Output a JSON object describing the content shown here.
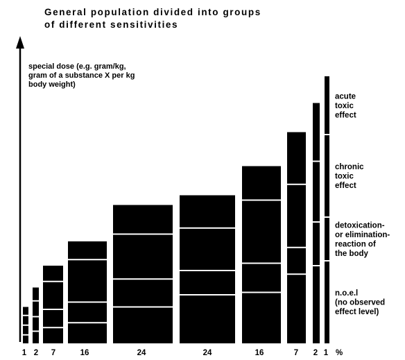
{
  "chart_data": {
    "type": "bar",
    "title": [
      "General population divided into groups",
      "of different sensitivities"
    ],
    "ylabel": [
      "special dose (e.g. gram/kg,",
      "gram of a substance X per kg",
      "body weight)"
    ],
    "unit_label": "%",
    "categories": [
      "1",
      "2",
      "7",
      "16",
      "24",
      "24",
      "16",
      "7",
      "2",
      "1"
    ],
    "population_percent": [
      1,
      2,
      7,
      16,
      24,
      24,
      16,
      7,
      2,
      1
    ],
    "ylim": [
      0,
      100
    ],
    "bars": [
      {
        "label": "1",
        "total": 15,
        "boundaries": [
          3.5,
          7.5,
          11.5
        ]
      },
      {
        "label": "2",
        "total": 23,
        "boundaries": [
          5,
          11,
          17.5
        ]
      },
      {
        "label": "7",
        "total": 32,
        "boundaries": [
          6.5,
          14,
          25.5
        ]
      },
      {
        "label": "16",
        "total": 42,
        "boundaries": [
          8.5,
          17,
          34.5
        ]
      },
      {
        "label": "24",
        "total": 57,
        "boundaries": [
          15,
          26.5,
          45
        ]
      },
      {
        "label": "24",
        "total": 61,
        "boundaries": [
          20,
          30,
          47.5
        ]
      },
      {
        "label": "16",
        "total": 73,
        "boundaries": [
          21,
          33,
          59
        ]
      },
      {
        "label": "7",
        "total": 87,
        "boundaries": [
          28.5,
          39.5,
          65.5
        ]
      },
      {
        "label": "2",
        "total": 99,
        "boundaries": [
          32,
          50,
          75
        ]
      },
      {
        "label": "1",
        "total": 110,
        "boundaries": [
          34,
          52,
          86
        ]
      }
    ],
    "effect_bands": [
      {
        "name": "n.o.e.l",
        "lines": [
          "n.o.e.l",
          "(no observed",
          "effect level)"
        ],
        "from": 0,
        "to": 34
      },
      {
        "name": "detoxication- or elimination-reaction of the body",
        "lines": [
          "detoxication-",
          "or elimination-",
          "reaction of",
          "the body"
        ],
        "from": 34,
        "to": 52
      },
      {
        "name": "chronic toxic effect",
        "lines": [
          "chronic",
          "toxic",
          "effect"
        ],
        "from": 52,
        "to": 86
      },
      {
        "name": "acute toxic effect",
        "lines": [
          "acute",
          "toxic",
          "effect"
        ],
        "from": 86,
        "to": 110
      }
    ],
    "colors": {
      "bar": "#000000",
      "divider": "#ffffff",
      "text": "#000000",
      "background": "#ffffff"
    }
  }
}
